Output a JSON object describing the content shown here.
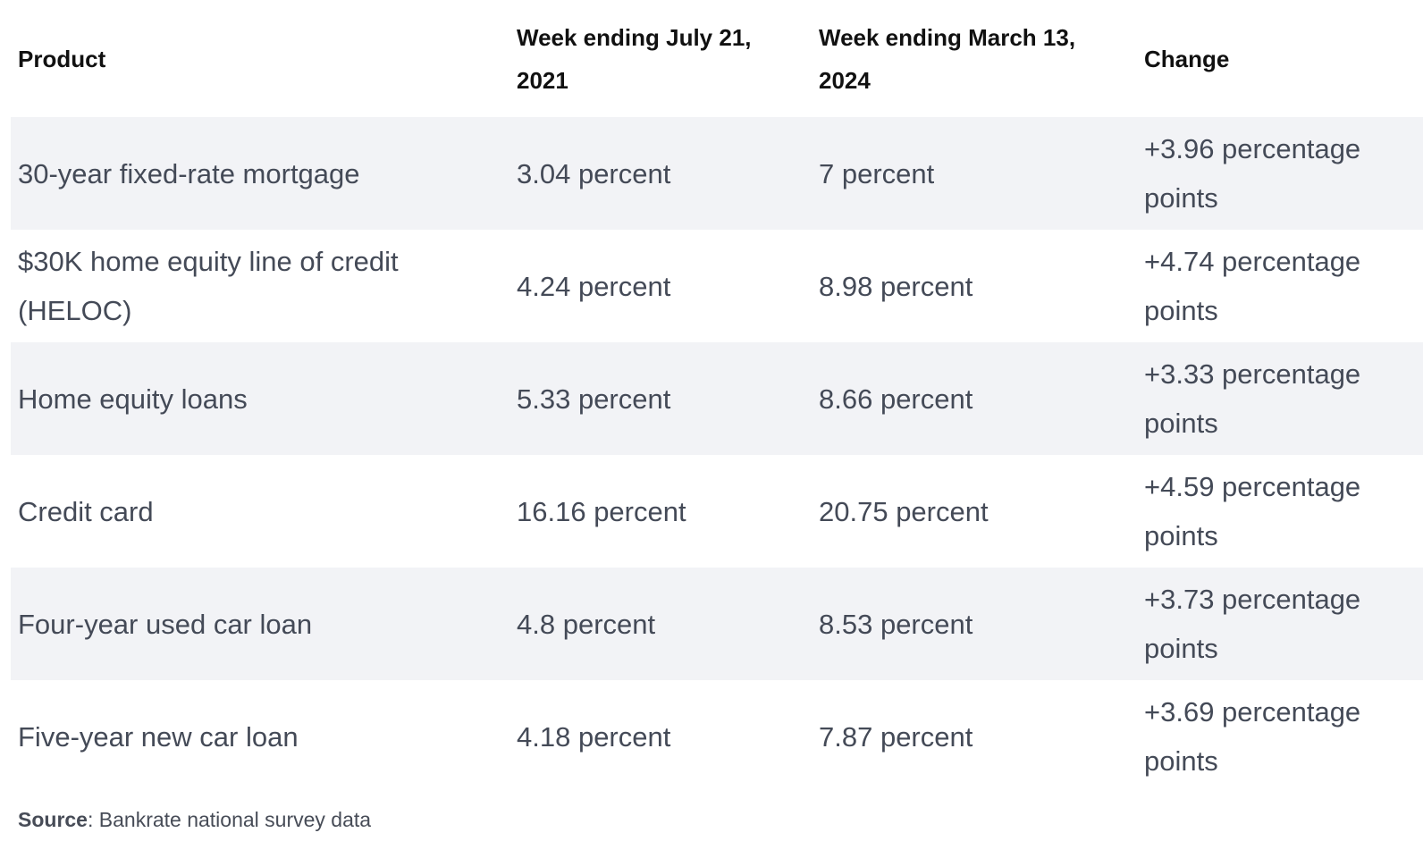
{
  "table": {
    "headers": [
      "Product",
      "Week ending July 21, 2021",
      "Week ending March 13, 2024",
      "Change"
    ],
    "rows": [
      [
        "30-year fixed-rate mortgage",
        "3.04 percent",
        "7 percent",
        "+3.96 percentage points"
      ],
      [
        "$30K home equity line of credit (HELOC)",
        "4.24 percent",
        "8.98 percent",
        "+4.74 percentage points"
      ],
      [
        "Home equity loans",
        "5.33 percent",
        "8.66 percent",
        "+3.33 percentage points"
      ],
      [
        "Credit card",
        "16.16 percent",
        "20.75 percent",
        "+4.59 percentage points"
      ],
      [
        "Four-year used car loan",
        "4.8 percent",
        "8.53 percent",
        "+3.73 percentage points"
      ],
      [
        "Five-year new car loan",
        "4.18 percent",
        "7.87 percent",
        "+3.69 percentage points"
      ]
    ]
  },
  "source": {
    "label": "Source",
    "text": ": Bankrate national survey data"
  },
  "colors": {
    "header_text": "#111111",
    "body_text": "#444a57",
    "stripe": "#f2f3f6"
  }
}
